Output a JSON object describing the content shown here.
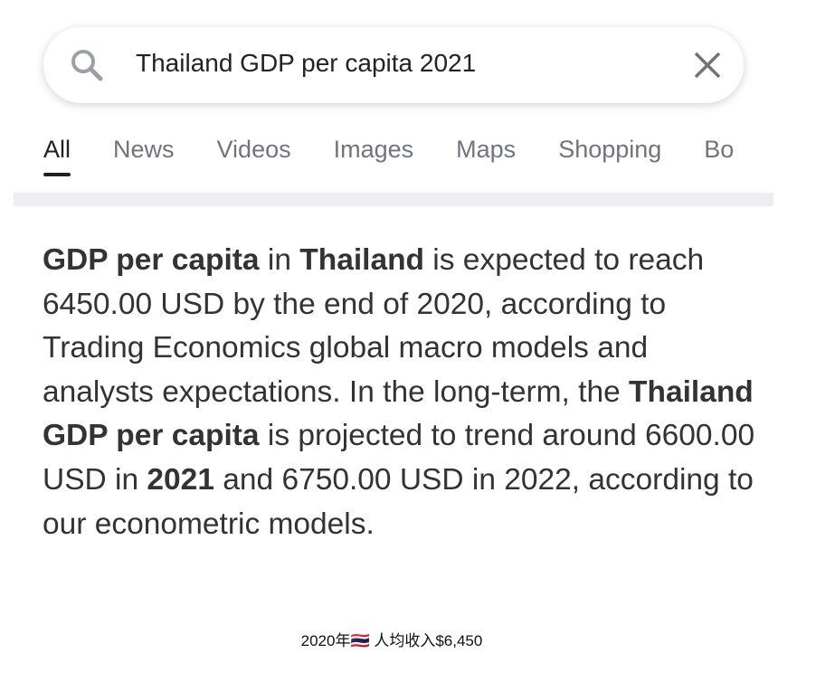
{
  "search": {
    "query": "Thailand GDP per capita 2021"
  },
  "tabs": [
    {
      "label": "All",
      "active": true
    },
    {
      "label": "News",
      "active": false
    },
    {
      "label": "Videos",
      "active": false
    },
    {
      "label": "Images",
      "active": false
    },
    {
      "label": "Maps",
      "active": false
    },
    {
      "label": "Shopping",
      "active": false
    },
    {
      "label": "Bo",
      "active": false
    }
  ],
  "snippet": {
    "runs": [
      {
        "text": "GDP per capita",
        "bold": true
      },
      {
        "text": " in ",
        "bold": false
      },
      {
        "text": "Thailand",
        "bold": true
      },
      {
        "text": " is expected to reach 6450.00 USD by the end of 2020, according to Trading Economics global macro models and analysts expectations. In the long-term, the ",
        "bold": false
      },
      {
        "text": "Thailand GDP per capita",
        "bold": true
      },
      {
        "text": " is projected to trend around 6600.00 USD in ",
        "bold": false
      },
      {
        "text": "2021",
        "bold": true
      },
      {
        "text": " and 6750.00 USD in 2022, according to our econometric models.",
        "bold": false
      }
    ]
  },
  "caption": "2020年🇹🇭 人均收入$6,450"
}
